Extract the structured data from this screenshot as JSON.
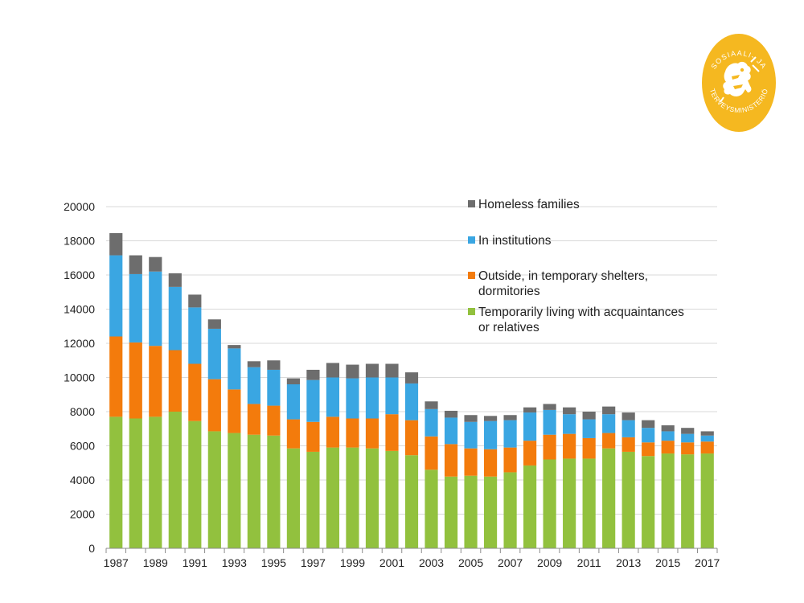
{
  "logo": {
    "name": "ministry-logo",
    "text_top": "SOSIAALI- JA",
    "text_bottom": "TERVEYSMINISTERIÖ",
    "color": "#f5b820"
  },
  "chart_data": {
    "type": "bar",
    "stacked": true,
    "title": "",
    "xlabel": "",
    "ylabel": "",
    "ylim": [
      0,
      20000
    ],
    "yticks": [
      0,
      2000,
      4000,
      6000,
      8000,
      10000,
      12000,
      14000,
      16000,
      18000,
      20000
    ],
    "grid": true,
    "legend_position": "top-right",
    "categories": [
      "1987",
      "1988",
      "1989",
      "1990",
      "1991",
      "1992",
      "1993",
      "1994",
      "1995",
      "1996",
      "1997",
      "1998",
      "1999",
      "2000",
      "2001",
      "2002",
      "2003",
      "2004",
      "2005",
      "2006",
      "2007",
      "2008",
      "2009",
      "2010",
      "2011",
      "2012",
      "2013",
      "2014",
      "2015",
      "2016",
      "2017"
    ],
    "x_tick_labels": [
      "1987",
      "1989",
      "1991",
      "1993",
      "1995",
      "1997",
      "1999",
      "2001",
      "2003",
      "2005",
      "2007",
      "2009",
      "2011",
      "2013",
      "2015",
      "2017"
    ],
    "series": [
      {
        "name": "Temporarily living with acquaintances or relatives",
        "legend_lines": [
          "Temporarily living with acquaintances",
          "or relatives"
        ],
        "color": "#92c13e",
        "values": [
          7700,
          7600,
          7700,
          8000,
          7450,
          6850,
          6750,
          6650,
          6600,
          5850,
          5650,
          5900,
          5900,
          5850,
          5700,
          5450,
          4600,
          4200,
          4250,
          4200,
          4450,
          4850,
          5200,
          5250,
          5250,
          5850,
          5650,
          5400,
          5550,
          5500,
          5550
        ]
      },
      {
        "name": "Outside, in temporary shelters, dormitories",
        "legend_lines": [
          "Outside, in temporary shelters,",
          "dormitories"
        ],
        "color": "#f37b0c",
        "values": [
          4700,
          4450,
          4150,
          3600,
          3350,
          3050,
          2550,
          1800,
          1750,
          1700,
          1750,
          1800,
          1700,
          1750,
          2150,
          2050,
          1950,
          1900,
          1600,
          1600,
          1450,
          1450,
          1450,
          1450,
          1200,
          900,
          850,
          800,
          750,
          700,
          700
        ]
      },
      {
        "name": "In institutions",
        "legend_lines": [
          "In institutions"
        ],
        "color": "#3aa6e2",
        "values": [
          4750,
          4000,
          4350,
          3700,
          3300,
          2950,
          2400,
          2150,
          2100,
          2050,
          2450,
          2300,
          2350,
          2400,
          2150,
          2150,
          1600,
          1550,
          1550,
          1650,
          1600,
          1650,
          1450,
          1150,
          1100,
          1100,
          1000,
          850,
          550,
          500,
          350
        ]
      },
      {
        "name": "Homeless families",
        "legend_lines": [
          "Homeless families"
        ],
        "color": "#6d6d6d",
        "values": [
          1300,
          1100,
          850,
          800,
          750,
          550,
          200,
          350,
          550,
          350,
          600,
          850,
          800,
          800,
          800,
          650,
          450,
          400,
          400,
          300,
          300,
          300,
          350,
          400,
          450,
          450,
          450,
          450,
          350,
          350,
          250
        ]
      }
    ]
  }
}
